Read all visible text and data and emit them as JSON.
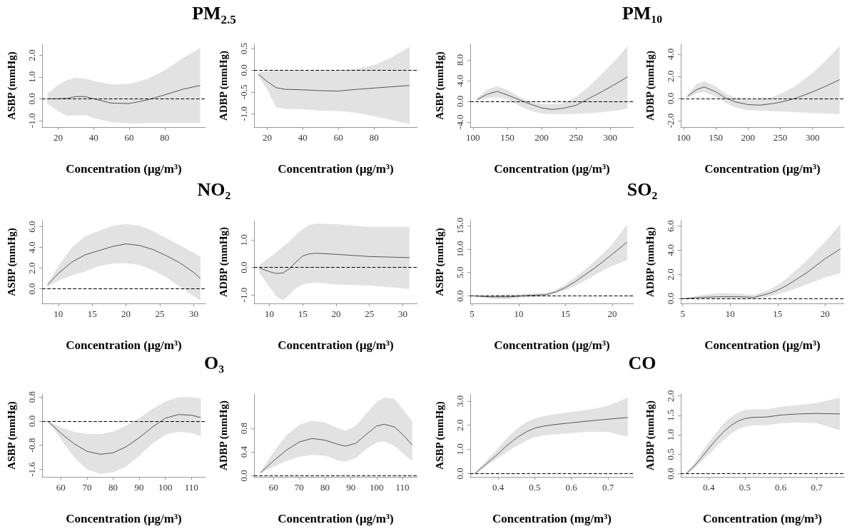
{
  "chart_data": [
    {
      "type": "line",
      "title": "PM$_{2.5}$",
      "xlabel": "Concentration (μg/m³)",
      "ylabel": "ASBP (mmHg)",
      "xlim": [
        11,
        103
      ],
      "ylim": [
        -1.3,
        2.5
      ],
      "xticks": [
        20,
        40,
        60,
        80
      ],
      "yticks": [
        {
          "value": -1,
          "label": "-1.0"
        },
        {
          "value": 0,
          "label": "0.0"
        },
        {
          "value": 1,
          "label": "1.0"
        },
        {
          "value": 2,
          "label": "2.0"
        }
      ],
      "x": [
        14,
        20,
        25,
        30,
        35,
        40,
        50,
        60,
        70,
        80,
        90,
        100
      ],
      "series": [
        {
          "color": "#555555",
          "values": [
            0.0,
            0.0,
            0.02,
            0.1,
            0.1,
            0.0,
            -0.2,
            -0.22,
            -0.06,
            0.18,
            0.43,
            0.61
          ],
          "lower": [
            -0.22,
            -0.58,
            -0.78,
            -0.76,
            -0.74,
            -0.88,
            -1.08,
            -1.13,
            -1.12,
            -1.11,
            -1.11,
            -1.12
          ],
          "upper": [
            0.24,
            0.63,
            0.85,
            0.96,
            0.93,
            0.82,
            0.66,
            0.68,
            0.9,
            1.3,
            1.85,
            2.34
          ]
        }
      ],
      "ref_lines": [
        {
          "axis": "y",
          "value": 0,
          "line_style": "dashed"
        }
      ]
    },
    {
      "type": "line",
      "xlabel": "Concentration (μg/m³)",
      "ylabel": "ADBP (mmHg)",
      "xlim": [
        12.6,
        104.4
      ],
      "ylim": [
        -1.31,
        0.6
      ],
      "xticks": [
        20,
        40,
        60,
        80
      ],
      "yticks": [
        {
          "value": -1,
          "label": "-1.0"
        },
        -0.5,
        {
          "value": 0,
          "label": "0.0"
        },
        0.5
      ],
      "x": [
        15,
        20,
        25,
        30,
        40,
        50,
        60,
        70,
        80,
        90,
        100
      ],
      "series": [
        {
          "color": "#555555",
          "values": [
            -0.09,
            -0.26,
            -0.4,
            -0.44,
            -0.45,
            -0.47,
            -0.48,
            -0.44,
            -0.41,
            -0.38,
            -0.35
          ],
          "lower": [
            -0.12,
            -0.45,
            -0.85,
            -0.89,
            -0.9,
            -0.93,
            -0.94,
            -0.98,
            -1.06,
            -1.15,
            -1.24
          ],
          "upper": [
            -0.05,
            -0.02,
            0.0,
            0.0,
            0.0,
            0.0,
            0.0,
            0.03,
            0.12,
            0.3,
            0.54
          ]
        }
      ],
      "ref_lines": [
        {
          "axis": "y",
          "value": 0,
          "line_style": "dashed"
        }
      ]
    },
    {
      "type": "line",
      "title": "PM₁₀",
      "xlabel": "Concentration (μg/m³)",
      "ylabel": "ASBP (mmHg)",
      "xlim": [
        96,
        334
      ],
      "ylim": [
        -5,
        11
      ],
      "xticks": [
        100,
        150,
        200,
        250,
        300
      ],
      "yticks": [
        {
          "value": -4,
          "label": "-4.0"
        },
        {
          "value": 0,
          "label": "0.0"
        },
        {
          "value": 4,
          "label": "4.0"
        },
        {
          "value": 8,
          "label": "8.0"
        }
      ],
      "x": [
        106,
        120,
        135,
        150,
        165,
        180,
        200,
        215,
        230,
        250,
        270,
        290,
        310,
        325
      ],
      "series": [
        {
          "color": "#555555",
          "values": [
            0.3,
            1.3,
            1.9,
            1.2,
            0.4,
            -0.4,
            -1.3,
            -1.6,
            -1.4,
            -0.8,
            0.6,
            2.0,
            3.5,
            4.7
          ],
          "lower": [
            0.1,
            0.6,
            0.8,
            0.3,
            -0.7,
            -1.7,
            -2.4,
            -2.5,
            -2.5,
            -2.4,
            -2.3,
            -2.1,
            -1.8,
            -1.4
          ],
          "upper": [
            0.6,
            2.2,
            2.9,
            2.2,
            1.0,
            0.0,
            -0.5,
            -0.6,
            -0.4,
            0.8,
            3.0,
            5.6,
            8.3,
            10.7
          ]
        }
      ],
      "ref_lines": [
        {
          "axis": "y",
          "value": 0,
          "line_style": "dashed"
        }
      ]
    },
    {
      "type": "line",
      "xlabel": "Concentration (μg/m³)",
      "ylabel": "ADBP (mmHg)",
      "xlim": [
        95.6,
        349
      ],
      "ylim": [
        -2.58,
        4.9
      ],
      "xticks": [
        100,
        150,
        200,
        250,
        300
      ],
      "yticks": [
        {
          "value": -2,
          "label": "-2.0"
        },
        {
          "value": 0,
          "label": "0.0"
        },
        {
          "value": 2,
          "label": "2.0"
        },
        {
          "value": 4,
          "label": "4.0"
        }
      ],
      "x": [
        106,
        120,
        132,
        150,
        165,
        180,
        200,
        218,
        240,
        260,
        275,
        300,
        320,
        342
      ],
      "series": [
        {
          "color": "#555555",
          "values": [
            0.2,
            0.8,
            1.05,
            0.6,
            0.05,
            -0.3,
            -0.55,
            -0.6,
            -0.45,
            -0.2,
            0.05,
            0.6,
            1.1,
            1.7
          ],
          "lower": [
            0.1,
            0.45,
            0.6,
            0.2,
            -0.4,
            -0.8,
            -1.05,
            -1.1,
            -1.15,
            -1.2,
            -1.25,
            -1.3,
            -1.35,
            -1.4
          ],
          "upper": [
            0.3,
            1.3,
            1.55,
            1.1,
            0.45,
            0.1,
            -0.1,
            -0.05,
            0.2,
            0.7,
            1.2,
            2.3,
            3.4,
            4.75
          ]
        }
      ],
      "ref_lines": [
        {
          "axis": "y",
          "value": 0,
          "line_style": "dashed"
        }
      ]
    },
    {
      "type": "line",
      "title": "NO₂",
      "xlabel": "Concentration (μg/m³)",
      "ylabel": "ASBP (mmHg)",
      "xlim": [
        7.6,
        31.75
      ],
      "ylim": [
        -1.4,
        6.6
      ],
      "xticks": [
        10,
        15,
        20,
        25,
        30
      ],
      "yticks": [
        {
          "value": 0,
          "label": "0.0"
        },
        {
          "value": 2,
          "label": "2.0"
        },
        {
          "value": 4,
          "label": "4.0"
        },
        {
          "value": 6,
          "label": "6.0"
        }
      ],
      "x": [
        8.4,
        10,
        12,
        14,
        16,
        18,
        20,
        22,
        24,
        26,
        28,
        30,
        31
      ],
      "series": [
        {
          "color": "#555555",
          "values": [
            0.4,
            1.5,
            2.6,
            3.3,
            3.7,
            4.1,
            4.35,
            4.2,
            3.8,
            3.2,
            2.5,
            1.6,
            1.0
          ],
          "lower": [
            0.2,
            0.8,
            1.3,
            1.7,
            2.2,
            2.45,
            2.5,
            2.3,
            1.8,
            1.1,
            0.2,
            -0.7,
            -1.1
          ],
          "upper": [
            0.5,
            2.2,
            4.0,
            5.1,
            5.6,
            6.1,
            6.25,
            6.1,
            5.6,
            4.9,
            4.2,
            3.5,
            3.1
          ]
        }
      ],
      "ref_lines": [
        {
          "axis": "y",
          "value": 0,
          "line_style": "dashed"
        }
      ]
    },
    {
      "type": "line",
      "xlabel": "Concentration (μg/m³)",
      "ylabel": "ADBP (mmHg)",
      "xlim": [
        7.7,
        32.2
      ],
      "ylim": [
        -1.31,
        1.71
      ],
      "xticks": [
        10,
        15,
        20,
        25,
        30
      ],
      "yticks": [
        {
          "value": -1,
          "label": "-1.0"
        },
        {
          "value": 0,
          "label": "0.0"
        },
        {
          "value": 1,
          "label": "1.0"
        }
      ],
      "x": [
        8.5,
        10,
        11,
        12,
        13,
        14,
        15,
        16,
        17,
        20,
        25,
        31
      ],
      "series": [
        {
          "color": "#555555",
          "values": [
            -0.02,
            -0.15,
            -0.22,
            -0.2,
            -0.05,
            0.2,
            0.42,
            0.5,
            0.52,
            0.48,
            0.4,
            0.36
          ],
          "lower": [
            -0.2,
            -0.7,
            -1.05,
            -1.2,
            -1.0,
            -0.75,
            -0.62,
            -0.57,
            -0.55,
            -0.62,
            -0.66,
            -0.78
          ],
          "upper": [
            0.1,
            0.35,
            0.55,
            0.75,
            0.95,
            1.2,
            1.4,
            1.55,
            1.6,
            1.58,
            1.48,
            1.48
          ]
        }
      ],
      "ref_lines": [
        {
          "axis": "y",
          "value": 0,
          "line_style": "dashed"
        }
      ]
    },
    {
      "type": "line",
      "title": "SO₂",
      "xlabel": "Concentration (μg/m³)",
      "ylabel": "ASBP (mmHg)",
      "xlim": [
        4.8,
        22.3
      ],
      "ylim": [
        -1.6,
        16.1
      ],
      "xticks": [
        5,
        10,
        15,
        20
      ],
      "yticks": [
        {
          "value": 0,
          "label": "0.0"
        },
        {
          "value": 5,
          "label": "5.0"
        },
        {
          "value": 10,
          "label": "10.0"
        },
        {
          "value": 15,
          "label": "15.0"
        }
      ],
      "x": [
        5.2,
        7,
        9,
        11,
        13,
        14,
        15,
        16,
        17,
        18,
        19,
        20,
        21.6
      ],
      "series": [
        {
          "color": "#555555",
          "values": [
            0.0,
            -0.2,
            -0.2,
            0.1,
            0.3,
            0.9,
            1.8,
            3.0,
            4.4,
            5.8,
            7.3,
            8.9,
            11.5
          ],
          "lower": [
            -0.1,
            -0.6,
            -0.7,
            -0.3,
            0.0,
            0.5,
            1.2,
            2.1,
            3.2,
            4.3,
            5.4,
            6.4,
            7.6
          ],
          "upper": [
            0.05,
            0.1,
            0.3,
            0.5,
            0.6,
            1.3,
            2.5,
            3.9,
            5.5,
            7.2,
            9.0,
            11.0,
            15.3
          ]
        }
      ],
      "ref_lines": [
        {
          "axis": "y",
          "value": 0,
          "line_style": "dashed"
        }
      ]
    },
    {
      "type": "line",
      "xlabel": "Concentration (μg/m³)",
      "ylabel": "ADBP (mmHg)",
      "xlim": [
        4.8,
        22.0
      ],
      "ylim": [
        -0.4,
        6.45
      ],
      "xticks": [
        5,
        10,
        15,
        20
      ],
      "yticks": [
        {
          "value": 0,
          "label": "0.0"
        },
        {
          "value": 2,
          "label": "2.0"
        },
        {
          "value": 4,
          "label": "4.0"
        },
        {
          "value": 6,
          "label": "6.0"
        }
      ],
      "x": [
        5.1,
        7,
        9,
        11,
        12.5,
        14,
        15,
        16,
        17,
        18,
        19,
        20,
        21.6
      ],
      "series": [
        {
          "color": "#555555",
          "values": [
            0.0,
            0.1,
            0.15,
            0.15,
            0.1,
            0.4,
            0.7,
            1.1,
            1.6,
            2.1,
            2.7,
            3.3,
            4.1
          ],
          "lower": [
            -0.02,
            0.0,
            0.0,
            0.0,
            -0.05,
            0.15,
            0.35,
            0.6,
            0.85,
            1.15,
            1.45,
            1.75,
            2.1
          ],
          "upper": [
            0.02,
            0.3,
            0.45,
            0.4,
            0.3,
            0.7,
            1.1,
            1.7,
            2.4,
            3.1,
            3.9,
            4.7,
            6.15
          ]
        }
      ],
      "ref_lines": [
        {
          "axis": "y",
          "value": 0,
          "line_style": "dashed"
        }
      ]
    },
    {
      "type": "line",
      "title": "O₃",
      "xlabel": "Concentration (μg/m³)",
      "ylabel": "ASBP (mmHg)",
      "xlim": [
        52.8,
        115.4
      ],
      "ylim": [
        -1.85,
        0.9
      ],
      "xticks": [
        60,
        70,
        80,
        90,
        100,
        110
      ],
      "yticks": [
        -1.6,
        -0.8,
        {
          "value": 0,
          "label": "0.0"
        },
        0.8
      ],
      "x": [
        55,
        60,
        65,
        70,
        75,
        80,
        85,
        90,
        95,
        100,
        105,
        110,
        113.6
      ],
      "series": [
        {
          "color": "#555555",
          "values": [
            0.0,
            -0.4,
            -0.75,
            -1.0,
            -1.1,
            -1.05,
            -0.85,
            -0.55,
            -0.2,
            0.1,
            0.22,
            0.2,
            0.12
          ],
          "lower": [
            0.0,
            -0.6,
            -1.2,
            -1.6,
            -1.75,
            -1.7,
            -1.5,
            -1.15,
            -0.75,
            -0.45,
            -0.35,
            -0.4,
            -0.5
          ],
          "upper": [
            0.0,
            -0.2,
            -0.35,
            -0.42,
            -0.43,
            -0.35,
            -0.15,
            0.1,
            0.4,
            0.65,
            0.8,
            0.8,
            0.75
          ]
        }
      ],
      "ref_lines": [
        {
          "axis": "y",
          "value": 0,
          "line_style": "dashed"
        }
      ]
    },
    {
      "type": "line",
      "xlabel": "Concentration (μg/m³)",
      "ylabel": "ADBP (mmHg)",
      "xlim": [
        52.5,
        115.8
      ],
      "ylim": [
        -0.02,
        1.38
      ],
      "xticks": [
        60,
        70,
        80,
        90,
        100,
        110
      ],
      "yticks": [
        {
          "value": 0,
          "label": "0.0"
        },
        0.4,
        0.8
      ],
      "x": [
        55,
        60,
        65,
        70,
        75,
        80,
        85,
        88,
        92,
        96,
        100,
        103,
        107,
        110,
        113.8
      ],
      "series": [
        {
          "color": "#555555",
          "values": [
            0.05,
            0.25,
            0.43,
            0.57,
            0.63,
            0.6,
            0.53,
            0.5,
            0.55,
            0.7,
            0.84,
            0.87,
            0.82,
            0.7,
            0.52
          ],
          "lower": [
            0.04,
            0.15,
            0.25,
            0.32,
            0.35,
            0.34,
            0.26,
            0.24,
            0.3,
            0.45,
            0.56,
            0.58,
            0.5,
            0.38,
            0.25
          ],
          "upper": [
            0.06,
            0.4,
            0.68,
            0.86,
            0.93,
            0.9,
            0.8,
            0.76,
            0.85,
            1.05,
            1.25,
            1.32,
            1.3,
            1.13,
            0.92
          ]
        }
      ],
      "ref_lines": [
        {
          "axis": "y",
          "value": 0,
          "line_style": "dashed"
        }
      ]
    },
    {
      "type": "line",
      "title": "CO",
      "xlabel": "Concentration (mg/m³)",
      "ylabel": "ASBP (mmHg)",
      "xlim": [
        0.324,
        0.77
      ],
      "ylim": [
        -0.14,
        3.29
      ],
      "xticks": [
        0.4,
        0.5,
        0.6,
        0.7
      ],
      "yticks": [
        {
          "value": 0,
          "label": "0.0"
        },
        {
          "value": 1,
          "label": "1.0"
        },
        {
          "value": 2,
          "label": "2.0"
        },
        {
          "value": 3,
          "label": "3.0"
        }
      ],
      "x": [
        0.337,
        0.36,
        0.38,
        0.4,
        0.42,
        0.44,
        0.46,
        0.48,
        0.5,
        0.52,
        0.55,
        0.6,
        0.65,
        0.7,
        0.754
      ],
      "series": [
        {
          "color": "#555555",
          "values": [
            0.0,
            0.3,
            0.55,
            0.82,
            1.1,
            1.35,
            1.57,
            1.75,
            1.88,
            1.95,
            2.02,
            2.1,
            2.18,
            2.25,
            2.32
          ],
          "lower": [
            -0.02,
            0.22,
            0.45,
            0.65,
            0.85,
            1.05,
            1.22,
            1.38,
            1.5,
            1.57,
            1.62,
            1.68,
            1.73,
            1.72,
            1.52
          ],
          "upper": [
            0.02,
            0.4,
            0.72,
            1.05,
            1.4,
            1.7,
            1.95,
            2.15,
            2.28,
            2.36,
            2.45,
            2.55,
            2.65,
            2.8,
            3.15
          ]
        }
      ],
      "ref_lines": [
        {
          "axis": "y",
          "value": 0,
          "line_style": "dashed"
        }
      ]
    },
    {
      "type": "line",
      "xlabel": "Concentration (mg/m³)",
      "ylabel": "ADBP (mmHg)",
      "xlim": [
        0.322,
        0.776
      ],
      "ylim": [
        -0.08,
        2.05
      ],
      "xticks": [
        0.4,
        0.5,
        0.6,
        0.7
      ],
      "yticks": [
        {
          "value": 0,
          "label": "0.0"
        },
        0.5,
        {
          "value": 1,
          "label": "1.0"
        },
        1.5,
        {
          "value": 2,
          "label": "2.0"
        }
      ],
      "x": [
        0.337,
        0.36,
        0.38,
        0.4,
        0.42,
        0.44,
        0.46,
        0.48,
        0.5,
        0.52,
        0.56,
        0.6,
        0.65,
        0.7,
        0.764
      ],
      "series": [
        {
          "color": "#555555",
          "values": [
            0.0,
            0.2,
            0.42,
            0.65,
            0.87,
            1.07,
            1.23,
            1.35,
            1.42,
            1.45,
            1.46,
            1.51,
            1.54,
            1.55,
            1.54
          ],
          "lower": [
            -0.02,
            0.15,
            0.32,
            0.5,
            0.68,
            0.86,
            1.02,
            1.14,
            1.21,
            1.24,
            1.25,
            1.3,
            1.32,
            1.3,
            1.12
          ],
          "upper": [
            0.02,
            0.28,
            0.55,
            0.8,
            1.05,
            1.28,
            1.45,
            1.57,
            1.64,
            1.66,
            1.66,
            1.72,
            1.77,
            1.82,
            1.96
          ]
        }
      ],
      "ref_lines": [
        {
          "axis": "y",
          "value": 0,
          "line_style": "dashed"
        }
      ]
    }
  ]
}
